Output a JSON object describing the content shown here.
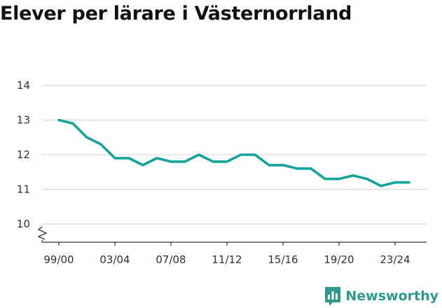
{
  "colors": {
    "line": "#17a398",
    "grid": "#d9d9d9",
    "axis": "#333333",
    "brand": "#2f9a8c"
  },
  "brand": {
    "name": "Newsworthy",
    "icon": "newsworthy-logo-icon"
  },
  "chart_data": {
    "type": "line",
    "title": "Elever per lärare i Västernorrland",
    "xlabel": "",
    "ylabel": "",
    "ylim": [
      10,
      14
    ],
    "axis_break": true,
    "grid": true,
    "yticks": [
      "10",
      "11",
      "12",
      "13",
      "14"
    ],
    "x": [
      "99/00",
      "00/01",
      "01/02",
      "02/03",
      "03/04",
      "04/05",
      "05/06",
      "06/07",
      "07/08",
      "08/09",
      "09/10",
      "10/11",
      "11/12",
      "12/13",
      "13/14",
      "14/15",
      "15/16",
      "16/17",
      "17/18",
      "18/19",
      "19/20",
      "20/21",
      "21/22",
      "22/23",
      "23/24",
      "24/25"
    ],
    "xtick_labels": [
      "99/00",
      "03/04",
      "07/08",
      "11/12",
      "15/16",
      "19/20",
      "23/24"
    ],
    "series": [
      {
        "values": [
          13.0,
          12.9,
          12.5,
          12.3,
          11.9,
          11.9,
          11.7,
          11.9,
          11.8,
          11.8,
          12.0,
          11.8,
          11.8,
          12.0,
          12.0,
          11.7,
          11.7,
          11.6,
          11.6,
          11.3,
          11.3,
          11.4,
          11.3,
          11.1,
          11.2,
          11.2
        ]
      }
    ]
  }
}
